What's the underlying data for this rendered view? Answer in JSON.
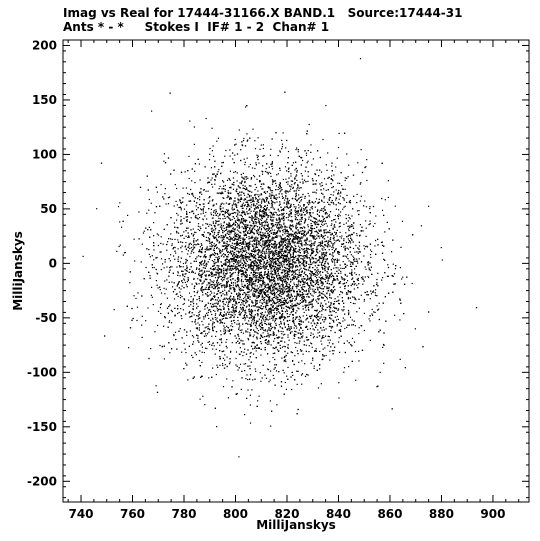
{
  "chart_data": {
    "type": "scatter",
    "title": "Imag vs Real for 17444-31166.X BAND.1   Source:17444-31",
    "subtitle": "Ants * - *     Stokes I  IF# 1 - 2  Chan# 1",
    "xlabel": "MilliJanskys",
    "ylabel": "MilliJanskys",
    "xlim": [
      733,
      914
    ],
    "ylim": [
      -219,
      205
    ],
    "xticks": [
      740,
      760,
      780,
      800,
      820,
      840,
      860,
      880,
      900
    ],
    "yticks": [
      200,
      150,
      100,
      50,
      0,
      -50,
      -100,
      -150,
      -200
    ],
    "series": [
      {
        "distribution": "gaussian",
        "count": 9000,
        "x_mean": 812,
        "x_sd": 19,
        "y_mean": 0,
        "y_sd": 44
      }
    ],
    "grid": false,
    "legend": "none",
    "point_color": "#000000"
  }
}
